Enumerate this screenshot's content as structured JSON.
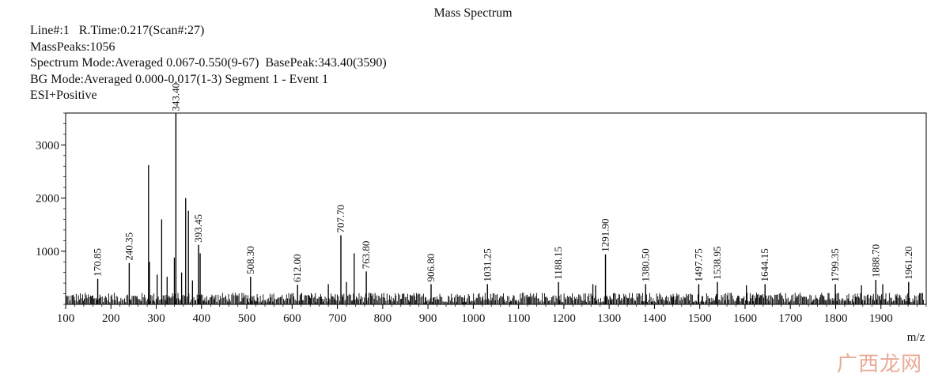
{
  "header": {
    "title": "Mass Spectrum",
    "line1": "Line#:1   R.Time:0.217(Scan#:27)",
    "line2": "MassPeaks:1056",
    "line3": "Spectrum Mode:Averaged 0.067-0.550(9-67)  BasePeak:343.40(3590)",
    "line4": "BG Mode:Averaged 0.000-0.017(1-3) Segment 1 - Event 1",
    "line5": "ESI+Positive"
  },
  "watermark": "广西龙网",
  "chart_data": {
    "type": "bar",
    "title": "Mass Spectrum",
    "xlabel": "m/z",
    "ylabel": "",
    "xlim": [
      100,
      2000
    ],
    "ylim": [
      0,
      3600
    ],
    "xticks": [
      100,
      200,
      300,
      400,
      500,
      600,
      700,
      800,
      900,
      1000,
      1100,
      1200,
      1300,
      1400,
      1500,
      1600,
      1700,
      1800,
      1900
    ],
    "yticks": [
      1000,
      2000,
      3000
    ],
    "grid": false,
    "bar_color": "#000000",
    "labeled_peaks": [
      {
        "mz": 170.85,
        "intensity": 480,
        "label": "170.85"
      },
      {
        "mz": 240.35,
        "intensity": 780,
        "label": "240.35"
      },
      {
        "mz": 343.4,
        "intensity": 3590,
        "label": "343.40"
      },
      {
        "mz": 393.45,
        "intensity": 1120,
        "label": "393.45"
      },
      {
        "mz": 508.3,
        "intensity": 520,
        "label": "508.30"
      },
      {
        "mz": 612.0,
        "intensity": 370,
        "label": "612.00"
      },
      {
        "mz": 707.7,
        "intensity": 1300,
        "label": "707.70"
      },
      {
        "mz": 763.8,
        "intensity": 620,
        "label": "763.80"
      },
      {
        "mz": 906.8,
        "intensity": 380,
        "label": "906.80"
      },
      {
        "mz": 1031.25,
        "intensity": 380,
        "label": "1031.25"
      },
      {
        "mz": 1188.15,
        "intensity": 420,
        "label": "1188.15"
      },
      {
        "mz": 1291.9,
        "intensity": 940,
        "label": "1291.90"
      },
      {
        "mz": 1380.5,
        "intensity": 380,
        "label": "1380.50"
      },
      {
        "mz": 1497.75,
        "intensity": 380,
        "label": "1497.75"
      },
      {
        "mz": 1538.95,
        "intensity": 420,
        "label": "1538.95"
      },
      {
        "mz": 1644.15,
        "intensity": 380,
        "label": "1644.15"
      },
      {
        "mz": 1799.35,
        "intensity": 380,
        "label": "1799.35"
      },
      {
        "mz": 1888.7,
        "intensity": 460,
        "label": "1888.70"
      },
      {
        "mz": 1961.2,
        "intensity": 420,
        "label": "1961.20"
      }
    ],
    "unlabeled_peaks": [
      {
        "mz": 283.0,
        "intensity": 2620
      },
      {
        "mz": 285.0,
        "intensity": 800
      },
      {
        "mz": 312.0,
        "intensity": 1600
      },
      {
        "mz": 340.0,
        "intensity": 880
      },
      {
        "mz": 365.0,
        "intensity": 2000
      },
      {
        "mz": 371.0,
        "intensity": 1760
      },
      {
        "mz": 397.0,
        "intensity": 960
      },
      {
        "mz": 302.0,
        "intensity": 560
      },
      {
        "mz": 324.0,
        "intensity": 520
      },
      {
        "mz": 356.0,
        "intensity": 600
      },
      {
        "mz": 380.0,
        "intensity": 450
      },
      {
        "mz": 737.0,
        "intensity": 960
      },
      {
        "mz": 720.0,
        "intensity": 420
      },
      {
        "mz": 680.0,
        "intensity": 380
      },
      {
        "mz": 1264.0,
        "intensity": 380
      },
      {
        "mz": 1270.0,
        "intensity": 360
      },
      {
        "mz": 1603.0,
        "intensity": 360
      },
      {
        "mz": 1857.0,
        "intensity": 360
      },
      {
        "mz": 1904.0,
        "intensity": 380
      }
    ],
    "noise_level": 200
  }
}
